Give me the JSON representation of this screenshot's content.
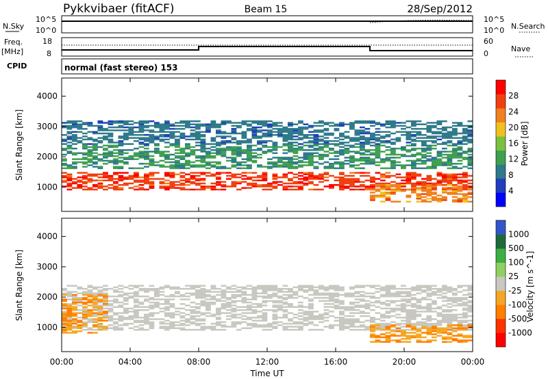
{
  "header": {
    "station": "Pykkvibaer (fitACF)",
    "beam": "Beam 15",
    "date": "28/Sep/2012"
  },
  "noise_panel": {
    "left_label": "N.Sky",
    "right_label": "N.Search",
    "ticks_left": [
      "10^5",
      "10^0"
    ],
    "ticks_right": [
      "10^5",
      "10^0"
    ]
  },
  "freq_panel": {
    "left_label_1": "Freq.",
    "left_label_2": "[MHz]",
    "right_label": "Nave",
    "ticks_left": [
      "18",
      "8"
    ],
    "ticks_right": [
      "60",
      "0"
    ]
  },
  "cpid_panel": {
    "left_label": "CPID",
    "text": "normal (fast stereo) 153"
  },
  "colors": {
    "power": [
      "#0000ff",
      "#1f3fbf",
      "#2f7a8a",
      "#3fa050",
      "#7cc040",
      "#f0c020",
      "#f08020",
      "#f04010",
      "#ff0000"
    ],
    "velocity": [
      "#3355cc",
      "#1e6a3a",
      "#3cb043",
      "#8fd060",
      "#c8c8c0",
      "#f5a623",
      "#ff7f00",
      "#ff3300",
      "#ff0000"
    ]
  },
  "chart_data": [
    {
      "type": "heatmap",
      "name": "power",
      "title": "",
      "xlabel": "",
      "ylabel": "Slant Range [km]",
      "xlim": [
        0,
        24
      ],
      "ylim": [
        200,
        4600
      ],
      "x_ticks": [
        "00:00",
        "04:00",
        "08:00",
        "12:00",
        "16:00",
        "20:00",
        "00:00"
      ],
      "y_ticks": [
        "1000",
        "2000",
        "3000",
        "4000"
      ],
      "colorbar_label": "Power [dB]",
      "colorbar_ticks": [
        "4",
        "8",
        "12",
        "16",
        "20",
        "24",
        "28"
      ],
      "colorbar_range": [
        0,
        32
      ],
      "features": [
        {
          "feature": "main echo band",
          "x_range": [
            0,
            24
          ],
          "range_km": [
            900,
            1500
          ],
          "power_db": [
            20,
            30
          ]
        },
        {
          "feature": "upper band",
          "x_range": [
            0,
            24
          ],
          "range_km": [
            1600,
            2400
          ],
          "power_db": [
            4,
            14
          ]
        },
        {
          "feature": "sporadic high-range echoes",
          "x_range": [
            0,
            24
          ],
          "range_km": [
            2400,
            3200
          ],
          "power_db": [
            4,
            10
          ]
        },
        {
          "feature": "late near-range band",
          "x_range": [
            18,
            24
          ],
          "range_km": [
            500,
            1100
          ],
          "power_db": [
            14,
            26
          ]
        }
      ]
    },
    {
      "type": "heatmap",
      "name": "velocity",
      "title": "",
      "xlabel": "Time UT",
      "ylabel": "Slant Range [km]",
      "xlim": [
        0,
        24
      ],
      "ylim": [
        200,
        4600
      ],
      "x_ticks": [
        "00:00",
        "04:00",
        "08:00",
        "12:00",
        "16:00",
        "20:00",
        "00:00"
      ],
      "y_ticks": [
        "1000",
        "2000",
        "3000",
        "4000"
      ],
      "colorbar_label": "Velocity [m s^-1]",
      "colorbar_ticks": [
        "1000",
        "500",
        "100",
        "25",
        "-25",
        "-100",
        "-500",
        "-1000"
      ],
      "features": [
        {
          "feature": "ground scatter",
          "x_range": [
            0,
            24
          ],
          "range_km": [
            900,
            2400
          ],
          "velocity_ms": [
            -25,
            25
          ]
        },
        {
          "feature": "receding early echoes",
          "x_range": [
            0,
            2.5
          ],
          "range_km": [
            800,
            2100
          ],
          "velocity_ms": [
            -100,
            -500
          ]
        },
        {
          "feature": "late receding band",
          "x_range": [
            18,
            24
          ],
          "range_km": [
            500,
            1100
          ],
          "velocity_ms": [
            -100,
            -500
          ]
        }
      ]
    }
  ]
}
